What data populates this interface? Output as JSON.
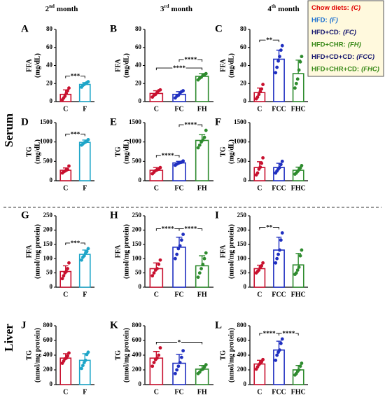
{
  "columns": [
    {
      "ordinal": "2",
      "suffix": "nd",
      "word": "month"
    },
    {
      "ordinal": "3",
      "suffix": "rd",
      "word": "month"
    },
    {
      "ordinal": "4",
      "suffix": "th",
      "word": "month"
    }
  ],
  "rows": [
    "Serum",
    "Liver"
  ],
  "legend": [
    {
      "label": "Chow diets:",
      "code": "(C)",
      "color": "#e00000"
    },
    {
      "label": "HFD:",
      "code": "(F)",
      "color": "#1a6fd0"
    },
    {
      "label": "HFD+CD:",
      "code": "(FC)",
      "color": "#16166e"
    },
    {
      "label": "HFD+CHR:",
      "code": "(FH)",
      "color": "#3a8a1a"
    },
    {
      "label": "HFD+CD+CD:",
      "code": "(FCC)",
      "color": "#16166e"
    },
    {
      "label": "HFD+CHR+CD:",
      "code": "(FHC)",
      "color": "#3a8a1a"
    }
  ],
  "chart_data": [
    {
      "type": "bar",
      "label": "A",
      "ylabel": [
        "FFA",
        "(mg/dL)"
      ],
      "categories": [
        "C",
        "F"
      ],
      "colors": [
        "#c8102e",
        "#1ea5c8"
      ],
      "values": [
        8,
        19
      ],
      "errors": [
        5,
        2
      ],
      "points": [
        [
          2,
          4,
          6,
          9,
          12,
          15
        ],
        [
          16,
          18,
          19,
          20,
          21,
          22
        ]
      ],
      "ylim": [
        0,
        80
      ],
      "yticks": [
        0,
        20,
        40,
        60,
        80
      ],
      "significance": [
        {
          "from": 0,
          "to": 1,
          "label": "***"
        }
      ]
    },
    {
      "type": "bar",
      "label": "B",
      "ylabel": [
        "FFA",
        "(mg/dL)"
      ],
      "categories": [
        "C",
        "FC",
        "FH"
      ],
      "colors": [
        "#c8102e",
        "#1f2fc0",
        "#2e8b2e"
      ],
      "values": [
        9,
        8,
        28
      ],
      "errors": [
        3,
        3,
        3
      ],
      "points": [
        [
          5,
          7,
          8,
          10,
          12,
          13
        ],
        [
          4,
          6,
          7,
          9,
          11,
          12
        ],
        [
          24,
          26,
          27,
          29,
          30,
          31
        ]
      ],
      "ylim": [
        0,
        80
      ],
      "yticks": [
        0,
        20,
        40,
        60,
        80
      ],
      "significance": [
        {
          "from": 0,
          "to": 2,
          "label": "****"
        },
        {
          "from": 1,
          "to": 2,
          "label": "****"
        }
      ]
    },
    {
      "type": "bar",
      "label": "C",
      "ylabel": [
        "FFA",
        "(mg/dL)"
      ],
      "categories": [
        "C",
        "FCC",
        "FHC"
      ],
      "colors": [
        "#c8102e",
        "#1f2fc0",
        "#2e8b2e"
      ],
      "values": [
        10,
        47,
        31
      ],
      "errors": [
        5,
        10,
        15
      ],
      "points": [
        [
          3,
          5,
          8,
          11,
          14,
          19
        ],
        [
          32,
          38,
          45,
          50,
          57,
          62
        ],
        [
          15,
          20,
          25,
          35,
          44,
          50
        ]
      ],
      "ylim": [
        0,
        80
      ],
      "yticks": [
        0,
        20,
        40,
        60,
        80
      ],
      "significance": [
        {
          "from": 0,
          "to": 1,
          "label": "**"
        }
      ]
    },
    {
      "type": "bar",
      "label": "D",
      "ylabel": [
        "TG",
        "(mg/dL)"
      ],
      "categories": [
        "C",
        "F"
      ],
      "colors": [
        "#c8102e",
        "#1ea5c8"
      ],
      "values": [
        270,
        990
      ],
      "errors": [
        60,
        60
      ],
      "points": [
        [
          200,
          230,
          250,
          270,
          290,
          380
        ],
        [
          920,
          950,
          980,
          1000,
          1020,
          1060
        ]
      ],
      "ylim": [
        0,
        1500
      ],
      "yticks": [
        0,
        500,
        1000,
        1500
      ],
      "significance": [
        {
          "from": 0,
          "to": 1,
          "label": "***"
        }
      ]
    },
    {
      "type": "bar",
      "label": "E",
      "ylabel": [
        "TG",
        "(mg/dL)"
      ],
      "categories": [
        "C",
        "FC",
        "FH"
      ],
      "colors": [
        "#c8102e",
        "#1f2fc0",
        "#2e8b2e"
      ],
      "values": [
        270,
        460,
        1040
      ],
      "errors": [
        70,
        40,
        150
      ],
      "points": [
        [
          180,
          220,
          260,
          280,
          300,
          340
        ],
        [
          400,
          430,
          450,
          470,
          480,
          510
        ],
        [
          850,
          920,
          1000,
          1050,
          1120,
          1300
        ]
      ],
      "ylim": [
        0,
        1500
      ],
      "yticks": [
        0,
        500,
        1000,
        1500
      ],
      "significance": [
        {
          "from": 1,
          "to": 2,
          "label": "****"
        },
        {
          "from": 0,
          "to": 1,
          "label": "****"
        }
      ]
    },
    {
      "type": "bar",
      "label": "F",
      "ylabel": [
        "TG",
        "(mg/dL)"
      ],
      "categories": [
        "C",
        "FCC",
        "FHC"
      ],
      "colors": [
        "#c8102e",
        "#1f2fc0",
        "#2e8b2e"
      ],
      "values": [
        340,
        340,
        270
      ],
      "errors": [
        150,
        110,
        80
      ],
      "points": [
        [
          150,
          200,
          300,
          350,
          450,
          590
        ],
        [
          200,
          250,
          300,
          340,
          420,
          500
        ],
        [
          170,
          200,
          240,
          280,
          330,
          390
        ]
      ],
      "ylim": [
        0,
        1500
      ],
      "yticks": [
        0,
        500,
        1000,
        1500
      ],
      "significance": []
    },
    {
      "type": "bar",
      "label": "G",
      "ylabel": [
        "FFA",
        "(nmol/mg protein)"
      ],
      "categories": [
        "C",
        "F"
      ],
      "colors": [
        "#c8102e",
        "#1ea5c8"
      ],
      "values": [
        55,
        115
      ],
      "errors": [
        20,
        15
      ],
      "points": [
        [
          30,
          40,
          50,
          55,
          65,
          85
        ],
        [
          95,
          105,
          110,
          118,
          125,
          135
        ]
      ],
      "ylim": [
        0,
        250
      ],
      "yticks": [
        0,
        50,
        100,
        150,
        200,
        250
      ],
      "significance": [
        {
          "from": 0,
          "to": 1,
          "label": "***"
        }
      ]
    },
    {
      "type": "bar",
      "label": "H",
      "ylabel": [
        "FFA",
        "(nmol/mg protein)"
      ],
      "categories": [
        "C",
        "FC",
        "FH"
      ],
      "colors": [
        "#c8102e",
        "#1f2fc0",
        "#2e8b2e"
      ],
      "values": [
        65,
        140,
        75
      ],
      "errors": [
        20,
        35,
        35
      ],
      "points": [
        [
          40,
          50,
          60,
          65,
          80,
          95
        ],
        [
          100,
          115,
          135,
          145,
          165,
          185
        ],
        [
          35,
          50,
          65,
          80,
          100,
          120
        ]
      ],
      "ylim": [
        0,
        250
      ],
      "yticks": [
        0,
        50,
        100,
        150,
        200,
        250
      ],
      "significance": [
        {
          "from": 0,
          "to": 1,
          "label": "****"
        },
        {
          "from": 1,
          "to": 2,
          "label": "****"
        }
      ]
    },
    {
      "type": "bar",
      "label": "I",
      "ylabel": [
        "FFA",
        "(nmol/mg protein)"
      ],
      "categories": [
        "C",
        "FCC",
        "FHC"
      ],
      "colors": [
        "#c8102e",
        "#1f2fc0",
        "#2e8b2e"
      ],
      "values": [
        65,
        130,
        78
      ],
      "errors": [
        12,
        45,
        40
      ],
      "points": [
        [
          50,
          55,
          60,
          70,
          75,
          85
        ],
        [
          85,
          100,
          115,
          130,
          165,
          190
        ],
        [
          45,
          50,
          60,
          70,
          110,
          130
        ]
      ],
      "ylim": [
        0,
        250
      ],
      "yticks": [
        0,
        50,
        100,
        150,
        200,
        250
      ],
      "significance": [
        {
          "from": 0,
          "to": 1,
          "label": "**"
        }
      ]
    },
    {
      "type": "bar",
      "label": "J",
      "ylabel": [
        "TG",
        "(nmol/mg protein)"
      ],
      "categories": [
        "C",
        "F"
      ],
      "colors": [
        "#c8102e",
        "#1ea5c8"
      ],
      "values": [
        360,
        330
      ],
      "errors": [
        60,
        90
      ],
      "points": [
        [
          290,
          320,
          350,
          360,
          390,
          430
        ],
        [
          220,
          260,
          300,
          330,
          410,
          440
        ]
      ],
      "ylim": [
        0,
        800
      ],
      "yticks": [
        0,
        200,
        400,
        600,
        800
      ],
      "significance": []
    },
    {
      "type": "bar",
      "label": "K",
      "ylabel": [
        "TG",
        "(nmol/mg protein)"
      ],
      "categories": [
        "C",
        "FC",
        "FH"
      ],
      "colors": [
        "#c8102e",
        "#1f2fc0",
        "#2e8b2e"
      ],
      "values": [
        360,
        290,
        210
      ],
      "errors": [
        90,
        120,
        50
      ],
      "points": [
        [
          250,
          300,
          340,
          360,
          400,
          500
        ],
        [
          150,
          200,
          250,
          300,
          370,
          460
        ],
        [
          150,
          170,
          200,
          210,
          240,
          270
        ]
      ],
      "ylim": [
        0,
        800
      ],
      "yticks": [
        0,
        200,
        400,
        600,
        800
      ],
      "significance": [
        {
          "from": 0,
          "to": 2,
          "label": "*"
        }
      ]
    },
    {
      "type": "bar",
      "label": "L",
      "ylabel": [
        "TG",
        "(nmol/mg protein)"
      ],
      "categories": [
        "C",
        "FCC",
        "FHC"
      ],
      "colors": [
        "#c8102e",
        "#1f2fc0",
        "#2e8b2e"
      ],
      "values": [
        280,
        470,
        200
      ],
      "errors": [
        50,
        120,
        60
      ],
      "points": [
        [
          210,
          240,
          270,
          290,
          310,
          340
        ],
        [
          330,
          400,
          440,
          470,
          560,
          620
        ],
        [
          130,
          150,
          180,
          200,
          250,
          290
        ]
      ],
      "ylim": [
        0,
        800
      ],
      "yticks": [
        0,
        200,
        400,
        600,
        800
      ],
      "significance": [
        {
          "from": 0,
          "to": 1,
          "label": "****"
        },
        {
          "from": 1,
          "to": 2,
          "label": "****"
        }
      ]
    }
  ]
}
